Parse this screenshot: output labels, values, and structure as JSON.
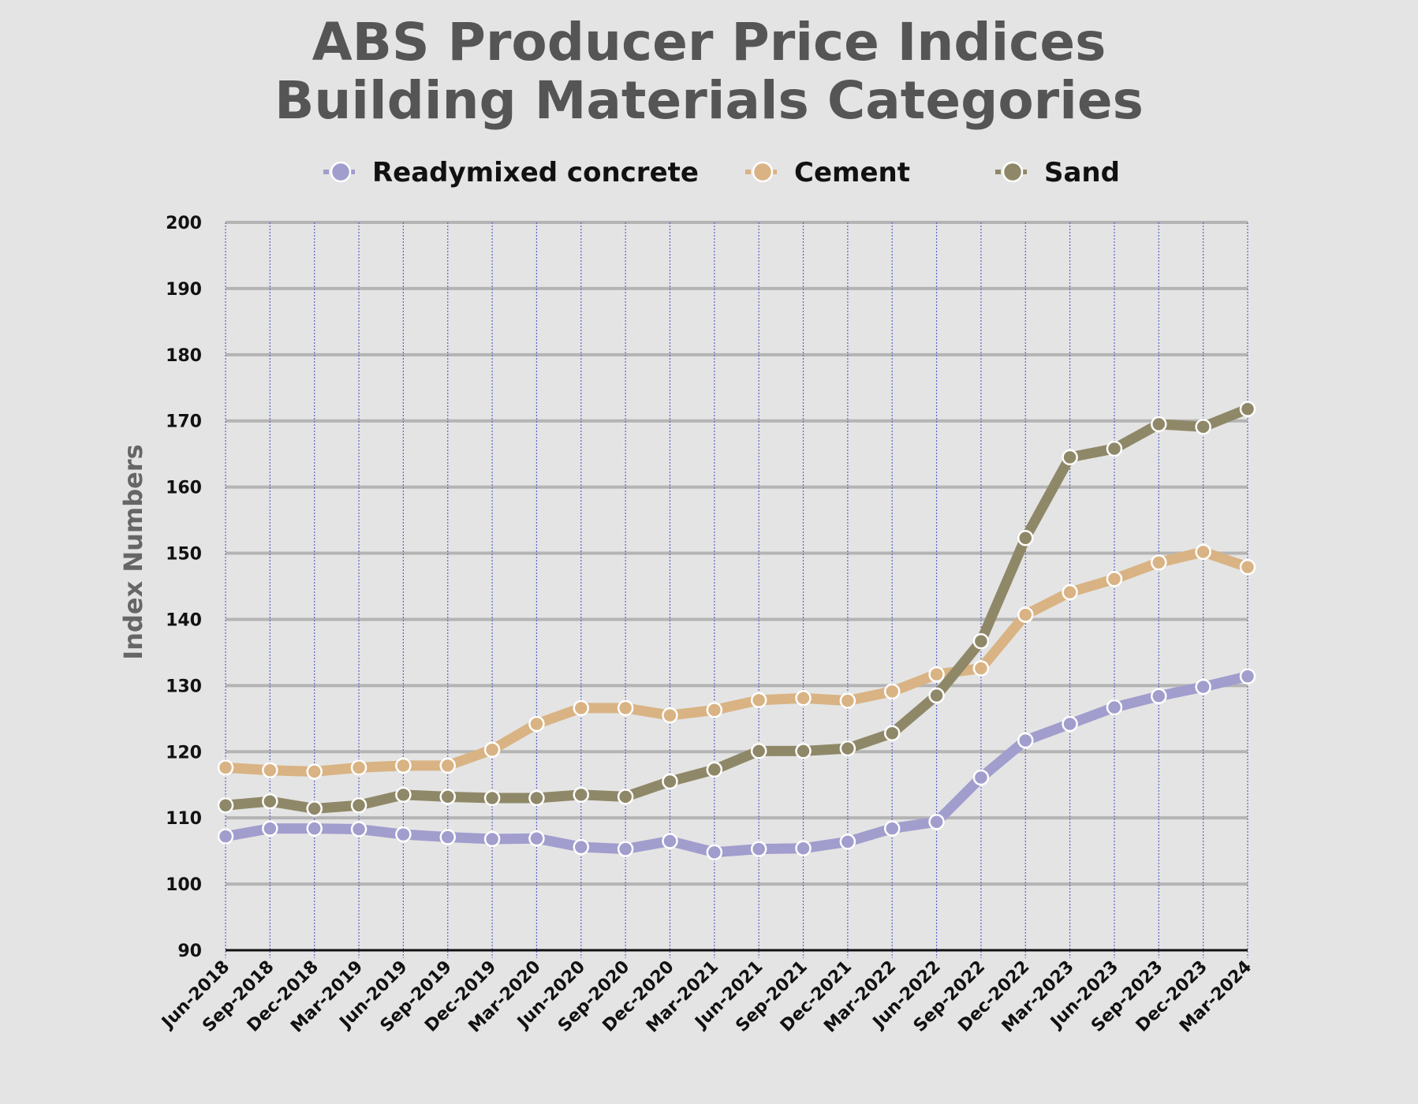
{
  "chart_data": {
    "type": "line",
    "title": [
      "ABS Producer Price Indices",
      "Building Materials Categories"
    ],
    "xlabel": "",
    "ylabel": "Index Numbers",
    "ylim": [
      90,
      200
    ],
    "yticks": [
      90,
      100,
      110,
      120,
      130,
      140,
      150,
      160,
      170,
      180,
      190,
      200
    ],
    "grid": true,
    "legend_position": "top",
    "categories": [
      "Jun-2018",
      "Sep-2018",
      "Dec-2018",
      "Mar-2019",
      "Jun-2019",
      "Sep-2019",
      "Dec-2019",
      "Mar-2020",
      "Jun-2020",
      "Sep-2020",
      "Dec-2020",
      "Mar-2021",
      "Jun-2021",
      "Sep-2021",
      "Dec-2021",
      "Mar-2022",
      "Jun-2022",
      "Sep-2022",
      "Dec-2022",
      "Mar-2023",
      "Jun-2023",
      "Sep-2023",
      "Dec-2023",
      "Mar-2024"
    ],
    "series": [
      {
        "name": "Readymixed concrete",
        "color": "#a19dcd",
        "values": [
          107.2,
          108.4,
          108.4,
          108.3,
          107.5,
          107.1,
          106.8,
          106.9,
          105.6,
          105.3,
          106.5,
          104.8,
          105.3,
          105.4,
          106.4,
          108.4,
          109.4,
          116.1,
          121.7,
          124.2,
          126.7,
          128.4,
          129.8,
          131.4
        ]
      },
      {
        "name": "Cement",
        "color": "#d9b384",
        "values": [
          117.6,
          117.2,
          117.0,
          117.6,
          117.9,
          117.9,
          120.3,
          124.2,
          126.6,
          126.6,
          125.5,
          126.3,
          127.8,
          128.1,
          127.7,
          129.1,
          131.7,
          132.6,
          140.7,
          144.1,
          146.1,
          148.6,
          150.2,
          147.9
        ]
      },
      {
        "name": "Sand",
        "color": "#8f8868",
        "values": [
          111.9,
          112.5,
          111.4,
          111.9,
          113.5,
          113.2,
          113.0,
          113.0,
          113.5,
          113.2,
          115.5,
          117.3,
          120.1,
          120.1,
          120.5,
          122.8,
          128.5,
          136.7,
          152.3,
          164.5,
          165.8,
          169.5,
          169.1,
          171.8
        ]
      }
    ]
  }
}
